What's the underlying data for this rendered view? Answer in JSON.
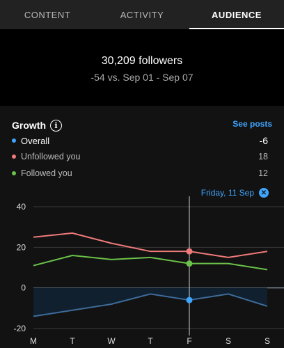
{
  "tabs": [
    {
      "label": "CONTENT"
    },
    {
      "label": "ACTIVITY"
    },
    {
      "label": "AUDIENCE"
    }
  ],
  "summary": {
    "followers": "30,209 followers",
    "delta": "-54 vs. Sep 01 - Sep 07"
  },
  "growth": {
    "title": "Growth",
    "see_posts": "See posts",
    "legend": [
      {
        "label": "Overall",
        "value": "-6",
        "color": "#3ea6ff"
      },
      {
        "label": "Unfollowed you",
        "value": "18",
        "color": "#f07a7a"
      },
      {
        "label": "Followed you",
        "value": "12",
        "color": "#6bc24a"
      }
    ],
    "selected_date": "Friday, 11 Sep"
  },
  "chart_data": {
    "type": "line",
    "categories": [
      "M",
      "T",
      "W",
      "T",
      "F",
      "S",
      "S"
    ],
    "ylim": [
      -20,
      40
    ],
    "yticks": [
      40,
      20,
      0,
      -20
    ],
    "selected_index": 4,
    "series": [
      {
        "name": "Unfollowed you",
        "color": "#f07a7a",
        "values": [
          25,
          27,
          22,
          18,
          18,
          15,
          18
        ]
      },
      {
        "name": "Followed you",
        "color": "#6bc24a",
        "values": [
          11,
          16,
          14,
          15,
          12,
          12,
          9
        ]
      },
      {
        "name": "Overall",
        "color": "#3e6b9a",
        "values": [
          -14,
          -11,
          -8,
          -3,
          -6,
          -3,
          -9
        ]
      }
    ]
  }
}
